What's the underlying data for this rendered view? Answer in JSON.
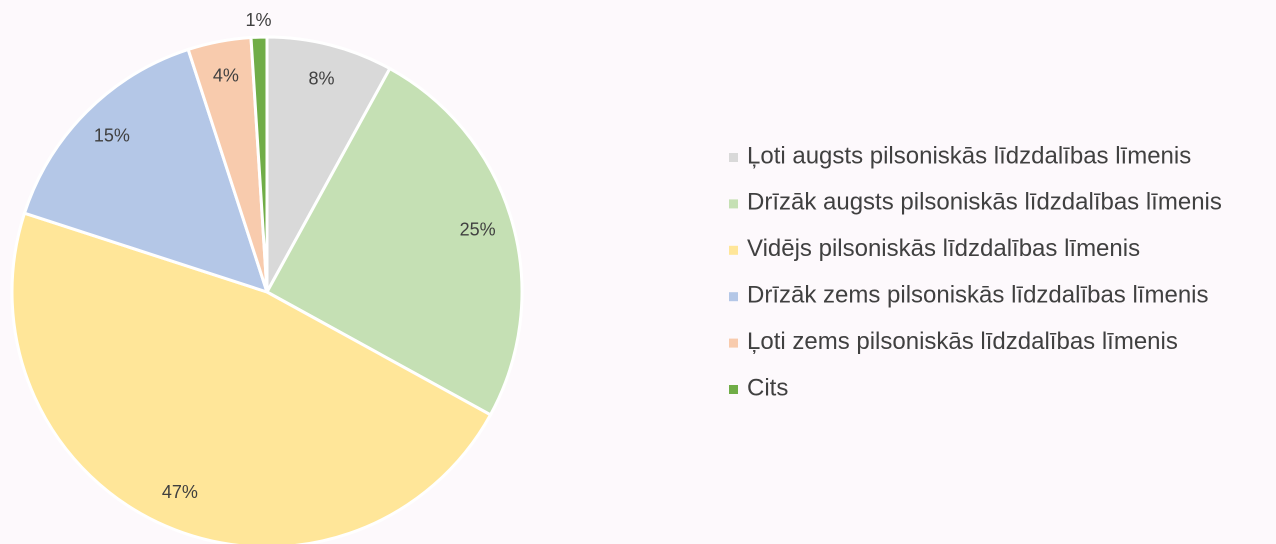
{
  "chart_data": {
    "type": "pie",
    "categories": [
      "Ļoti augsts pilsoniskās līdzdalības līmenis",
      "Drīzāk augsts pilsoniskās līdzdalības līmenis",
      "Vidējs pilsoniskās līdzdalības līmenis",
      "Drīzāk zems pilsoniskās līdzdalības līmenis",
      "Ļoti zems pilsoniskās līdzdalības līmenis",
      "Cits"
    ],
    "values": [
      8,
      25,
      47,
      15,
      4,
      1
    ],
    "value_labels": [
      "8%",
      "25%",
      "47%",
      "15%",
      "4%",
      "1%"
    ],
    "colors": [
      "#d9d9d9",
      "#c5e0b4",
      "#ffe699",
      "#b4c7e7",
      "#f8cbad",
      "#70ad47"
    ],
    "legend": "right"
  }
}
